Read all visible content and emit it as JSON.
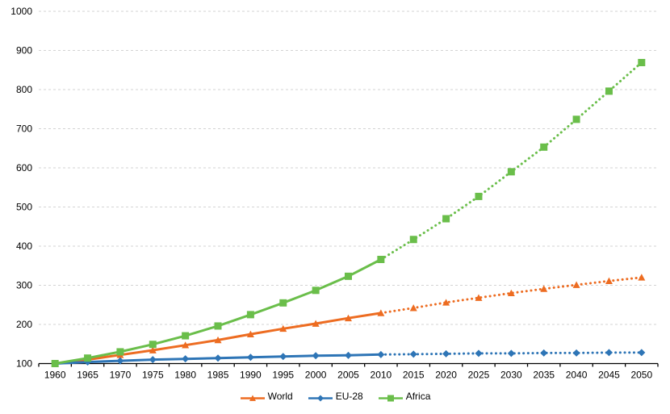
{
  "chart_data": {
    "type": "line",
    "title": "",
    "xlabel": "",
    "ylabel": "",
    "categories": [
      "1960",
      "1965",
      "1970",
      "1975",
      "1980",
      "1985",
      "1990",
      "1995",
      "2000",
      "2005",
      "2010",
      "2015",
      "2020",
      "2025",
      "2030",
      "2035",
      "2040",
      "2045",
      "2050"
    ],
    "ylim": [
      100,
      1000
    ],
    "yticks": [
      100,
      200,
      300,
      400,
      500,
      600,
      700,
      800,
      900,
      1000
    ],
    "grid": "horizontal-dashed",
    "legend_position": "bottom-center",
    "solid_until_category": "2010",
    "line_style_note": "solid line 1960-2010, dotted line 2010-2050",
    "series": [
      {
        "name": "World",
        "color": "#ED6C21",
        "marker": "triangle",
        "values": [
          100,
          110,
          122,
          134,
          147,
          160,
          175,
          189,
          202,
          216,
          229,
          242,
          256,
          268,
          280,
          291,
          301,
          311,
          320
        ]
      },
      {
        "name": "EU-28",
        "color": "#2E75B6",
        "marker": "diamond",
        "values": [
          100,
          104,
          107,
          110,
          112,
          114,
          116,
          118,
          120,
          121,
          123,
          124,
          125,
          126,
          126,
          127,
          127,
          128,
          128
        ]
      },
      {
        "name": "Africa",
        "color": "#6ABE4A",
        "marker": "square",
        "values": [
          100,
          114,
          130,
          149,
          171,
          196,
          225,
          255,
          287,
          323,
          366,
          417,
          470,
          527,
          590,
          653,
          724,
          796,
          869
        ]
      }
    ],
    "colors": {
      "gridline": "#D3D3D3",
      "axis": "#000000",
      "text": "#000000",
      "background": "#FFFFFF"
    }
  },
  "legend": {
    "items": [
      {
        "label": "World"
      },
      {
        "label": "EU-28"
      },
      {
        "label": "Africa"
      }
    ]
  }
}
